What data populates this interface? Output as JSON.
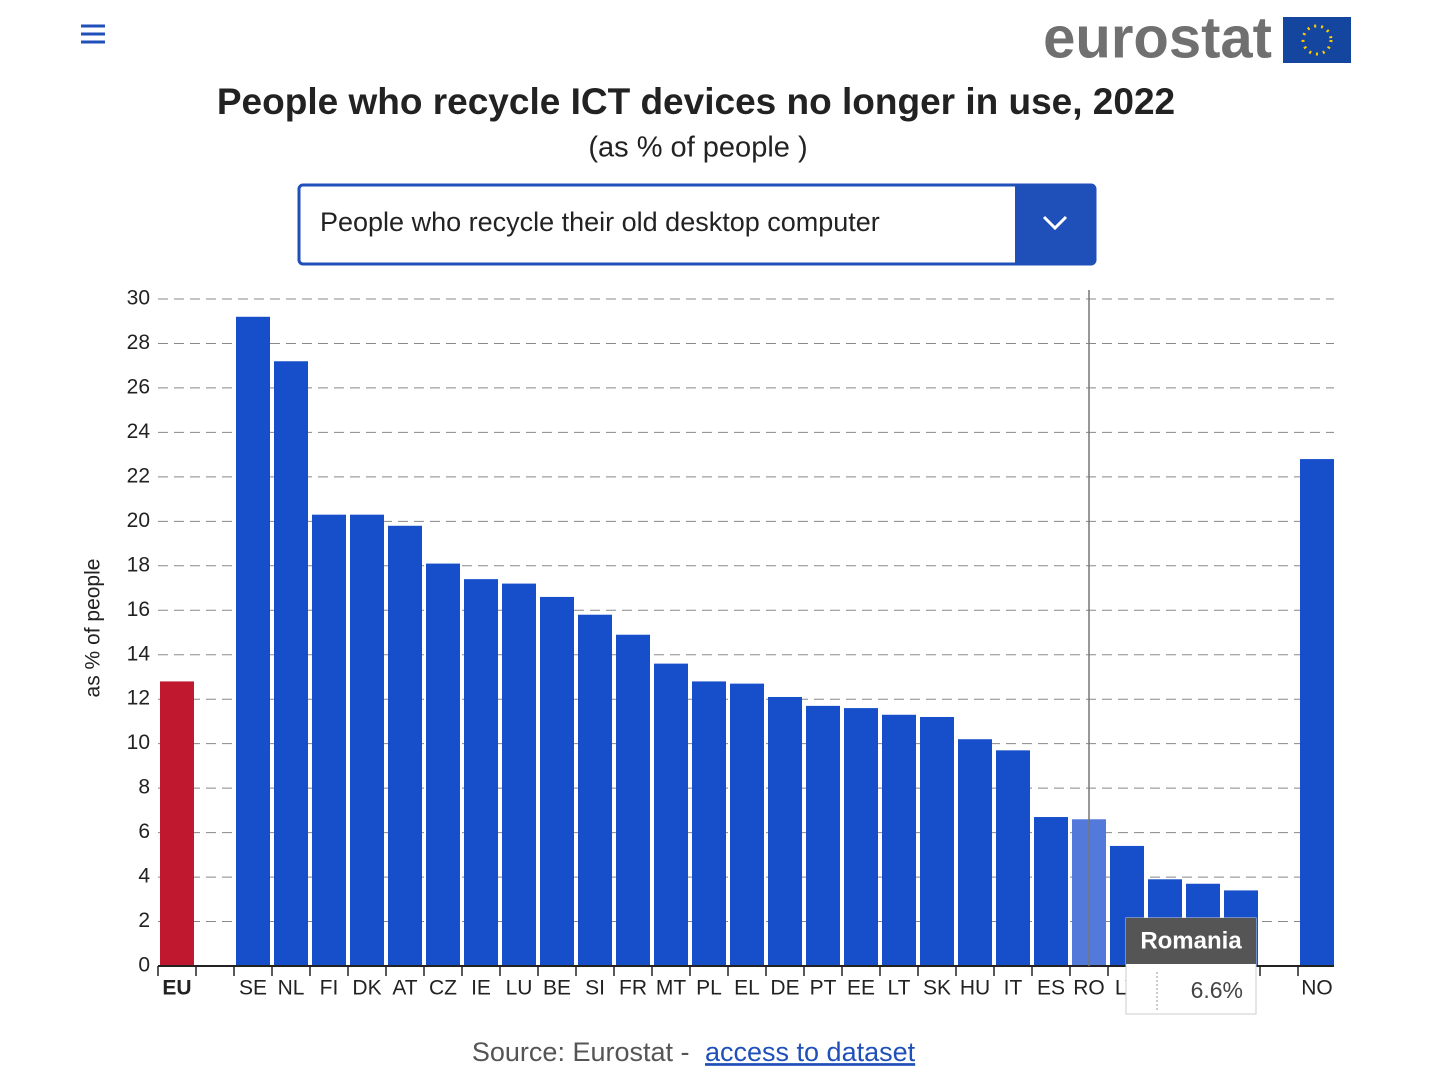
{
  "logo": "eurostat",
  "dropdown": "People who recycle their old desktop computer",
  "source": {
    "text": "Source: Eurostat - ",
    "link": "access to dataset"
  },
  "chart_data": {
    "type": "bar",
    "title": "People who recycle ICT devices no longer in use, 2022",
    "subtitle": "(as % of people )",
    "y_label": "as % of people",
    "categories": [
      "EU",
      null,
      "SE",
      "NL",
      "FI",
      "DK",
      "AT",
      "CZ",
      "IE",
      "LU",
      "BE",
      "SI",
      "FR",
      "MT",
      "PL",
      "EL",
      "DE",
      "PT",
      "EE",
      "LT",
      "SK",
      "HU",
      "IT",
      "ES",
      "RO",
      "LV",
      null,
      null,
      null,
      null,
      "NO"
    ],
    "values": [
      12.8,
      null,
      29.2,
      27.2,
      20.3,
      20.3,
      19.8,
      18.1,
      17.4,
      17.2,
      16.6,
      15.8,
      14.9,
      13.6,
      12.8,
      12.7,
      12.1,
      11.7,
      11.6,
      11.3,
      11.2,
      10.2,
      9.7,
      6.7,
      6.6,
      5.4,
      3.9,
      3.7,
      3.4,
      null,
      22.8
    ],
    "color": "#174fca",
    "reference_color": "#c0182f",
    "highlight_color": "#5379da",
    "ylim": [
      0,
      30
    ],
    "yticks": [
      0,
      2,
      4,
      6,
      8,
      10,
      12,
      14,
      16,
      18,
      20,
      22,
      24,
      26,
      28,
      30
    ],
    "grid": true,
    "tooltip": {
      "category": "RO",
      "name": "Romania",
      "label": "6.6%"
    }
  }
}
